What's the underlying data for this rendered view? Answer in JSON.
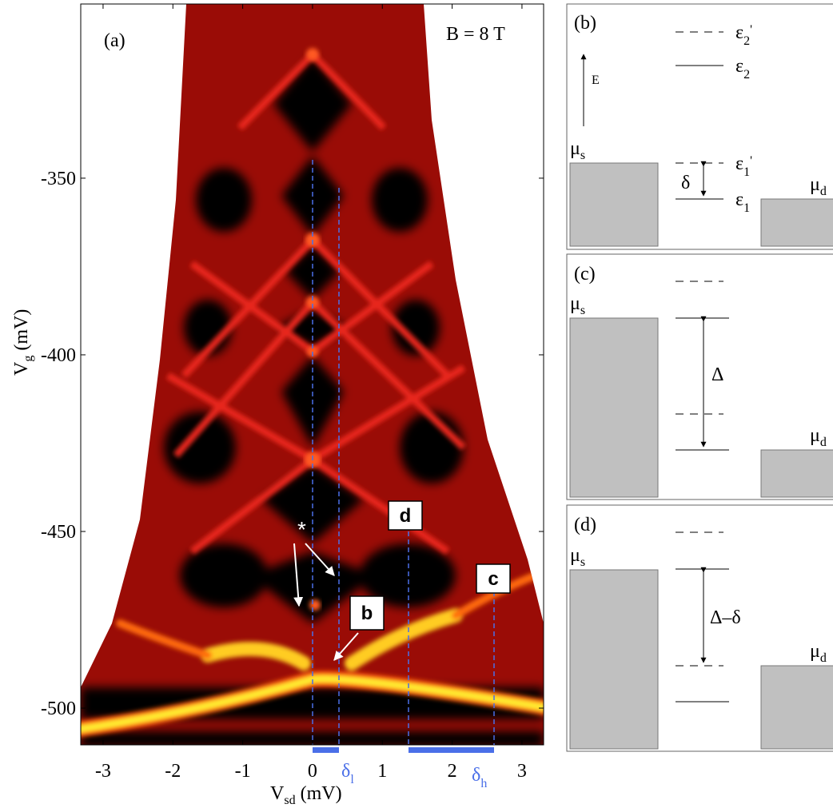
{
  "panel_a": {
    "label": "(a)",
    "field": "B = 8 T",
    "x_axis": {
      "symbol": "V",
      "subscript": "sd",
      "unit": "(mV)"
    },
    "y_axis": {
      "symbol": "V",
      "subscript": "g",
      "unit": "(mV)"
    },
    "xlim": [
      -3.32,
      3.31
    ],
    "ylim": [
      -510.4,
      -300.7
    ],
    "xticks": [
      -3,
      -2,
      -1,
      0,
      1,
      2,
      3
    ],
    "yticks": [
      -500,
      -450,
      -400,
      -350
    ],
    "star": "*",
    "markers": [
      "b",
      "c",
      "d"
    ],
    "delta_l": {
      "symbol": "δ",
      "subscript": "l"
    },
    "delta_h": {
      "symbol": "δ",
      "subscript": "h"
    }
  },
  "panel_b": {
    "label": "(b)",
    "eps2p": {
      "symbol": "ε",
      "subscript": "2",
      "prime": "'"
    },
    "eps2": {
      "symbol": "ε",
      "subscript": "2"
    },
    "energy": "E",
    "mu_s": {
      "symbol": "μ",
      "subscript": "s"
    },
    "eps1p": {
      "symbol": "ε",
      "subscript": "1",
      "prime": "'"
    },
    "delta": "δ",
    "eps1": {
      "symbol": "ε",
      "subscript": "1"
    },
    "mu_d": {
      "symbol": "μ",
      "subscript": "d"
    }
  },
  "panel_c": {
    "label": "(c)",
    "mu_s": {
      "symbol": "μ",
      "subscript": "s"
    },
    "gap": "Δ",
    "mu_d": {
      "symbol": "μ",
      "subscript": "d"
    }
  },
  "panel_d": {
    "label": "(d)",
    "mu_s": {
      "symbol": "μ",
      "subscript": "s"
    },
    "gap": "Δ–δ",
    "mu_d": {
      "symbol": "μ",
      "subscript": "d"
    }
  }
}
